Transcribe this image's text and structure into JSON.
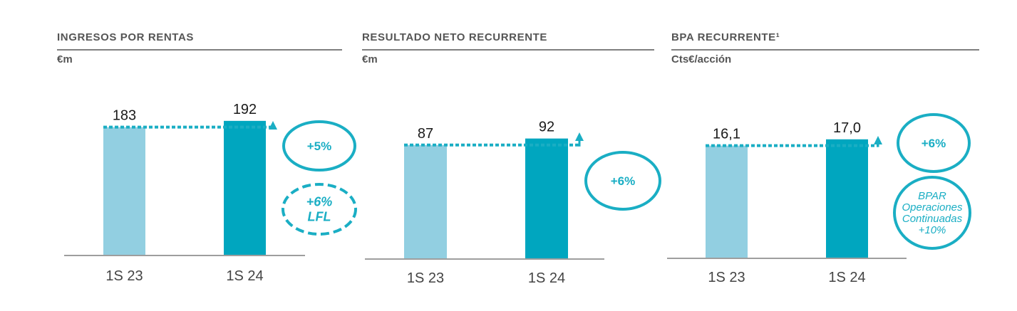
{
  "colors": {
    "bar_prior": "#92cfe1",
    "bar_current": "#00a6bf",
    "accent": "#1aaec4",
    "axis": "#7f7f7f",
    "title": "#555555"
  },
  "panels": [
    {
      "title": "INGRESOS POR RENTAS",
      "unit": "€m",
      "badges": [
        {
          "lines": [
            "+5%"
          ],
          "style": "solid"
        },
        {
          "lines": [
            "+6%",
            "LFL"
          ],
          "style": "dashed"
        }
      ]
    },
    {
      "title": "RESULTADO NETO RECURRENTE",
      "unit": "€m",
      "badges": [
        {
          "lines": [
            "+6%"
          ],
          "style": "solid"
        }
      ]
    },
    {
      "title": "BPA RECURRENTE¹",
      "unit": "Cts€/acción",
      "badges": [
        {
          "lines": [
            "+6%"
          ],
          "style": "solid"
        },
        {
          "lines": [
            "BPAR",
            "Operaciones",
            "Continuadas",
            "+10%"
          ],
          "style": "solid"
        }
      ]
    }
  ],
  "chart_data": [
    {
      "type": "bar",
      "title": "INGRESOS POR RENTAS",
      "ylabel": "€m",
      "categories": [
        "1S 23",
        "1S 24"
      ],
      "values": [
        183,
        192
      ],
      "value_labels": [
        "183",
        "192"
      ],
      "ylim": [
        0,
        200
      ],
      "grid": false,
      "legend": "none"
    },
    {
      "type": "bar",
      "title": "RESULTADO NETO RECURRENTE",
      "ylabel": "€m",
      "categories": [
        "1S 23",
        "1S 24"
      ],
      "values": [
        87,
        92
      ],
      "value_labels": [
        "87",
        "92"
      ],
      "ylim": [
        0,
        100
      ],
      "grid": false,
      "legend": "none"
    },
    {
      "type": "bar",
      "title": "BPA RECURRENTE¹",
      "ylabel": "Cts€/acción",
      "categories": [
        "1S 23",
        "1S 24"
      ],
      "values": [
        16.1,
        17.0
      ],
      "value_labels": [
        "16,1",
        "17,0"
      ],
      "ylim": [
        0,
        18
      ],
      "grid": false,
      "legend": "none"
    }
  ]
}
